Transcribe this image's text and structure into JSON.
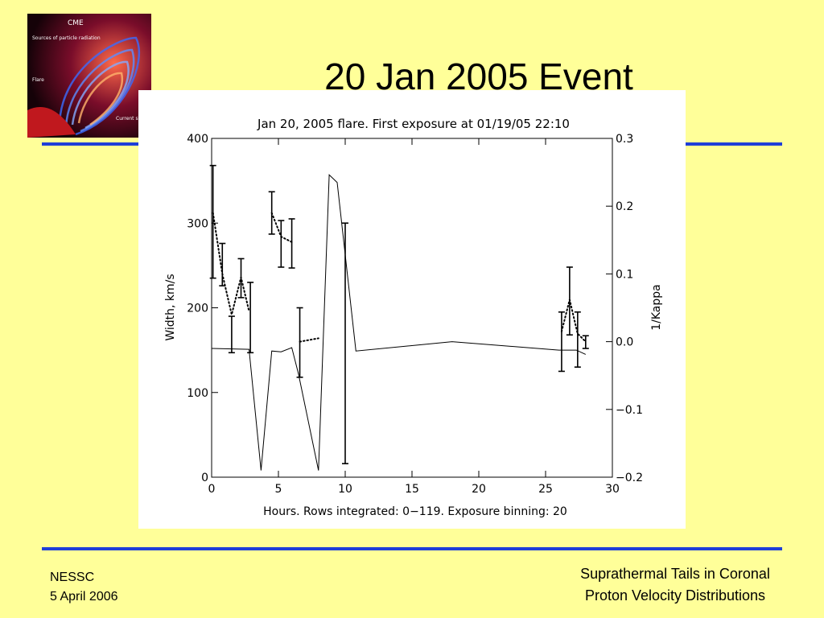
{
  "slide": {
    "title": "20 Jan 2005 Event",
    "footer_left": [
      "NESSC",
      "5 April 2006"
    ],
    "footer_right": [
      "Suprathermal Tails in Coronal",
      "Proton Velocity Distributions"
    ],
    "colors": {
      "background": "#ffff99",
      "rule": "#1f3fd8"
    }
  },
  "logo": {
    "labels": {
      "cme": "CME",
      "sources": "Sources of particle radiation",
      "flare": "Flare",
      "current": "Current sheet"
    }
  },
  "chart_data": {
    "type": "line",
    "title": "Jan 20, 2005 flare. First exposure at 01/19/05 22:10",
    "xlabel": "Hours. Rows integrated: 0−119. Exposure binning: 20",
    "ylabel": "Width, km/s",
    "y2label": "1/Kappa",
    "xlim": [
      0,
      30
    ],
    "ylim": [
      0,
      400
    ],
    "y2lim": [
      -0.2,
      0.3
    ],
    "x_ticks": [
      "0",
      "5",
      "10",
      "15",
      "20",
      "25",
      "30"
    ],
    "y_ticks": [
      "0",
      "100",
      "200",
      "300",
      "400"
    ],
    "y2_ticks": [
      "−0.2",
      "−0.1",
      "0.0",
      "0.1",
      "0.2",
      "0.3"
    ],
    "series": [
      {
        "axis": "left",
        "style": "solid",
        "x": [
          0,
          2.8,
          3.7,
          4.5,
          5.2,
          6.0,
          6.5,
          8.0,
          8.8,
          9.4,
          10.8,
          18.0,
          26.0,
          27.3,
          28.0
        ],
        "y": [
          152,
          151,
          8,
          149,
          148,
          153,
          122,
          8,
          357,
          348,
          149,
          160,
          150,
          150,
          145
        ]
      },
      {
        "axis": "right",
        "style": "dotted",
        "x": [
          0.1,
          0.8,
          1.5,
          2.2,
          2.8
        ],
        "y": [
          0.19,
          0.1,
          0.04,
          0.095,
          0.045
        ]
      },
      {
        "axis": "right",
        "style": "dotted",
        "x": [
          4.5,
          5.2,
          6.0
        ],
        "y": [
          0.19,
          0.155,
          0.147
        ]
      },
      {
        "axis": "right",
        "style": "dotted",
        "x": [
          6.6,
          8.0
        ],
        "y": [
          0.0,
          0.005
        ]
      },
      {
        "axis": "right",
        "style": "dotted",
        "x": [
          26.2,
          26.8,
          27.4,
          28.0
        ],
        "y": [
          0.015,
          0.062,
          0.012,
          0.0
        ]
      }
    ],
    "error_bars": [
      {
        "x": 0.1,
        "low": 235,
        "high": 368
      },
      {
        "x": 0.8,
        "low": 226,
        "high": 276
      },
      {
        "x": 1.5,
        "low": 147,
        "high": 190
      },
      {
        "x": 2.2,
        "low": 212,
        "high": 258
      },
      {
        "x": 2.9,
        "low": 147,
        "high": 230
      },
      {
        "x": 4.5,
        "low": 287,
        "high": 337
      },
      {
        "x": 5.2,
        "low": 248,
        "high": 303
      },
      {
        "x": 6.0,
        "low": 247,
        "high": 305
      },
      {
        "x": 6.6,
        "low": 118,
        "high": 200
      },
      {
        "x": 10.0,
        "low": 16,
        "high": 300
      },
      {
        "x": 26.2,
        "low": 125,
        "high": 195
      },
      {
        "x": 26.8,
        "low": 168,
        "high": 248
      },
      {
        "x": 27.4,
        "low": 130,
        "high": 195
      },
      {
        "x": 28.0,
        "low": 152,
        "high": 167
      }
    ]
  }
}
